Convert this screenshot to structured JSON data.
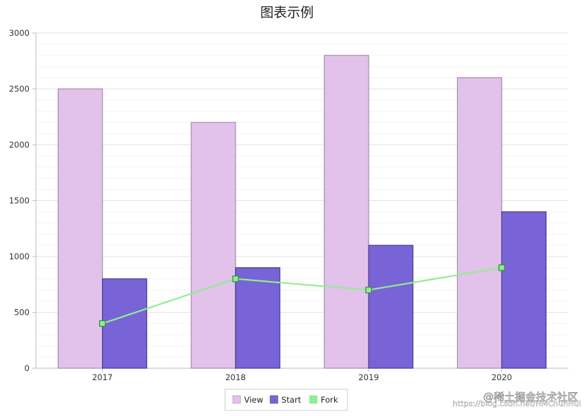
{
  "chart_data": {
    "type": "bar",
    "title": "图表示例",
    "categories": [
      "2017",
      "2018",
      "2019",
      "2020"
    ],
    "series": [
      {
        "name": "View",
        "kind": "bar",
        "values": [
          2500,
          2200,
          2800,
          2600
        ],
        "color": "#e2c1eb",
        "stroke": "#a88aad"
      },
      {
        "name": "Start",
        "kind": "bar",
        "values": [
          800,
          900,
          1100,
          1400
        ],
        "color": "#7864d6",
        "stroke": "#4a3a8c"
      },
      {
        "name": "Fork",
        "kind": "line",
        "values": [
          400,
          800,
          700,
          900
        ],
        "color": "#90ee90",
        "stroke": "#3d8f3d"
      }
    ],
    "xlabel": "",
    "ylabel": "",
    "ylim": [
      0,
      3000
    ],
    "yticks": [
      0,
      500,
      1000,
      1500,
      2000,
      2500,
      3000
    ],
    "grid": true,
    "legend": "bottom-center"
  },
  "watermark": {
    "text": "@稀土掘金技术社区",
    "blog": "https://blog.csdn.net/HMChunHui"
  }
}
